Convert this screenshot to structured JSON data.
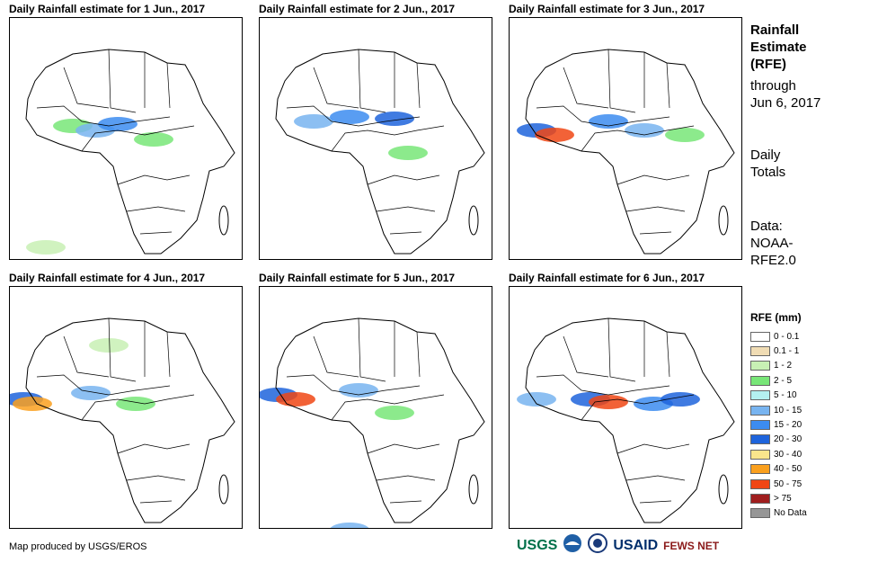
{
  "panels": [
    {
      "title": "Daily Rainfall estimate for 1 Jun., 2017"
    },
    {
      "title": "Daily Rainfall estimate for 2 Jun., 2017"
    },
    {
      "title": "Daily Rainfall estimate for 3 Jun., 2017"
    },
    {
      "title": "Daily Rainfall estimate for 4 Jun., 2017"
    },
    {
      "title": "Daily Rainfall estimate for 5 Jun., 2017"
    },
    {
      "title": "Daily Rainfall estimate for 6 Jun., 2017"
    }
  ],
  "side": {
    "title_1": "Rainfall",
    "title_2": "Estimate",
    "title_3": "(RFE)",
    "through_1": "through",
    "through_2": "Jun 6, 2017",
    "totals_1": "Daily",
    "totals_2": "Totals",
    "data_1": "Data:",
    "data_2": "NOAA-",
    "data_3": "RFE2.0"
  },
  "legend": {
    "title": "RFE (mm)",
    "items": [
      {
        "label": "0 - 0.1",
        "color": "#ffffff"
      },
      {
        "label": "0.1 - 1",
        "color": "#f0dcb4"
      },
      {
        "label": "1 - 2",
        "color": "#c8f0b4"
      },
      {
        "label": "2 - 5",
        "color": "#78e678"
      },
      {
        "label": "5 - 10",
        "color": "#b4f0f0"
      },
      {
        "label": "10 - 15",
        "color": "#78b4f0"
      },
      {
        "label": "15 - 20",
        "color": "#3c8cf0"
      },
      {
        "label": "20 - 30",
        "color": "#1e64dc"
      },
      {
        "label": "30 - 40",
        "color": "#fae68c"
      },
      {
        "label": "40 - 50",
        "color": "#faa01e"
      },
      {
        "label": "50 - 75",
        "color": "#f04614"
      },
      {
        "label": "> 75",
        "color": "#a01e1e"
      },
      {
        "label": "No Data",
        "color": "#969696"
      }
    ]
  },
  "credit": "Map produced by USGS/EROS",
  "logos": {
    "usgs": "USGS",
    "usaid": "USAID",
    "fews": "FEWS NET"
  }
}
